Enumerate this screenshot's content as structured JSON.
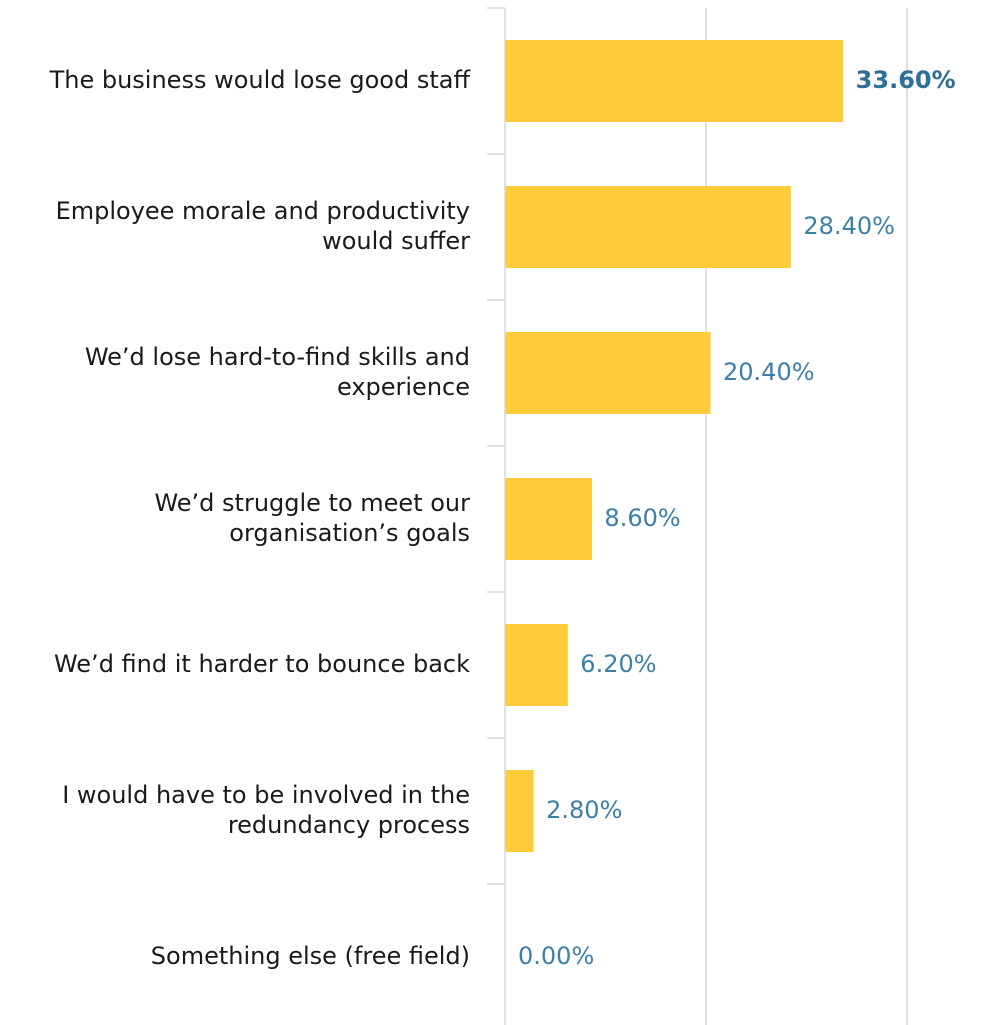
{
  "chart_data": {
    "type": "bar",
    "orientation": "horizontal",
    "categories": [
      [
        "The business would lose good staff"
      ],
      [
        "Employee morale and productivity",
        "would suffer"
      ],
      [
        "We’d lose hard-to-find skills and",
        "experience"
      ],
      [
        "We’d struggle to meet our",
        "organisation’s goals"
      ],
      [
        "We’d find it harder to bounce back"
      ],
      [
        "I would have to be involved in the",
        "redundancy process"
      ],
      [
        "Something else (free field)"
      ]
    ],
    "values": [
      33.6,
      28.4,
      20.4,
      8.6,
      6.2,
      2.8,
      0.0
    ],
    "data_labels": [
      "33.60%",
      "28.40%",
      "20.40%",
      "8.60%",
      "6.20%",
      "2.80%",
      "0.00%"
    ],
    "highlight_index": 0,
    "xlim": [
      0,
      40
    ],
    "gridlines_at": [
      0,
      20,
      40
    ],
    "grid": true,
    "legend": "none",
    "title": "",
    "xlabel": "",
    "ylabel": "",
    "colors": {
      "bar": "#fecb3a",
      "label": "#3c7fa8",
      "highlight_label": "#2d6f96",
      "grid": "#d9d9d9",
      "category_text": "#1a1a1a"
    }
  }
}
